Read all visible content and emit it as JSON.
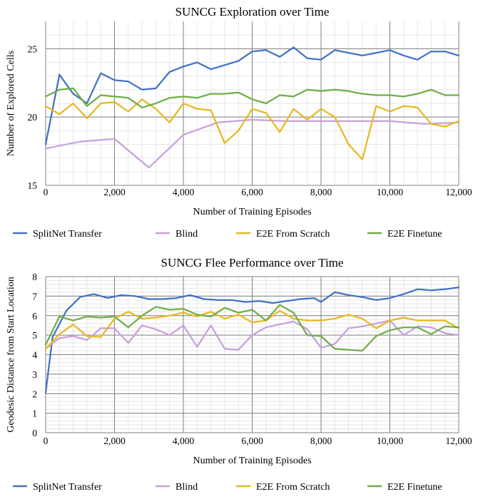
{
  "chart_data": [
    {
      "type": "line",
      "title": "SUNCG Exploration over Time",
      "xlabel": "Number of Training Episodes",
      "ylabel": "Number of Explored Cells",
      "xlim": [
        0,
        12000
      ],
      "ylim": [
        15,
        27
      ],
      "xticks": [
        0,
        2000,
        4000,
        6000,
        8000,
        10000,
        12000
      ],
      "xtick_labels": [
        "0",
        "2,000",
        "4,000",
        "6,000",
        "8,000",
        "10,000",
        "12,000"
      ],
      "yticks": [
        15,
        20,
        25
      ],
      "ytick_labels": [
        "15",
        "20",
        "25"
      ],
      "grid": true,
      "legend_position": "bottom",
      "series": [
        {
          "name": "SplitNet Transfer",
          "color": "#4472C4",
          "x": [
            0,
            400,
            800,
            1200,
            1600,
            2000,
            2400,
            2800,
            3200,
            3600,
            4000,
            4400,
            4800,
            5200,
            5600,
            6000,
            6400,
            6800,
            7200,
            7600,
            8000,
            8400,
            8800,
            9200,
            9600,
            10000,
            10400,
            10800,
            11200,
            11600,
            12000
          ],
          "y": [
            18.0,
            23.1,
            21.7,
            21.0,
            23.2,
            22.7,
            22.6,
            22.0,
            22.1,
            23.3,
            23.7,
            24.0,
            23.5,
            23.8,
            24.1,
            24.8,
            24.9,
            24.4,
            25.1,
            24.3,
            24.2,
            24.9,
            24.7,
            24.5,
            24.7,
            24.9,
            24.5,
            24.2,
            24.8,
            24.8,
            24.5
          ]
        },
        {
          "name": "Blind",
          "color": "#C8A0DC",
          "x": [
            0,
            1000,
            2000,
            3000,
            4000,
            5000,
            6000,
            7000,
            8000,
            9000,
            10000,
            11000,
            12000
          ],
          "y": [
            17.7,
            18.2,
            18.4,
            16.3,
            18.7,
            19.6,
            19.8,
            19.7,
            19.7,
            19.7,
            19.7,
            19.5,
            19.6
          ]
        },
        {
          "name": "E2E From Scratch",
          "color": "#E6B920",
          "x": [
            0,
            400,
            800,
            1200,
            1600,
            2000,
            2400,
            2800,
            3200,
            3600,
            4000,
            4400,
            4800,
            5200,
            5600,
            6000,
            6400,
            6800,
            7200,
            7600,
            8000,
            8400,
            8800,
            9200,
            9600,
            10000,
            10400,
            10800,
            11200,
            11600,
            12000
          ],
          "y": [
            20.8,
            20.2,
            21.0,
            19.9,
            21.0,
            21.1,
            20.4,
            21.3,
            20.6,
            19.6,
            21.0,
            20.6,
            20.5,
            18.1,
            19.0,
            20.6,
            20.3,
            18.9,
            20.6,
            19.8,
            20.6,
            20.0,
            18.0,
            16.9,
            20.8,
            20.4,
            20.8,
            20.7,
            19.5,
            19.3,
            19.7
          ]
        },
        {
          "name": "E2E Finetune",
          "color": "#70AD47",
          "x": [
            0,
            400,
            800,
            1200,
            1600,
            2000,
            2400,
            2800,
            3200,
            3600,
            4000,
            4400,
            4800,
            5200,
            5600,
            6000,
            6400,
            6800,
            7200,
            7600,
            8000,
            8400,
            8800,
            9200,
            9600,
            10000,
            10400,
            10800,
            11200,
            11600,
            12000
          ],
          "y": [
            21.5,
            22.0,
            22.1,
            20.8,
            21.6,
            21.5,
            21.4,
            20.7,
            21.0,
            21.4,
            21.5,
            21.4,
            21.7,
            21.7,
            21.8,
            21.3,
            21.0,
            21.6,
            21.5,
            22.0,
            21.9,
            22.0,
            21.9,
            21.7,
            21.6,
            21.6,
            21.5,
            21.7,
            22.0,
            21.6,
            21.6
          ]
        }
      ]
    },
    {
      "type": "line",
      "title": "SUNCG Flee Performance over Time",
      "xlabel": "Number of Training Episodes",
      "ylabel": "Geodesic Distance from Start Location",
      "xlim": [
        0,
        12000
      ],
      "ylim": [
        0,
        8
      ],
      "xticks": [
        0,
        2000,
        4000,
        6000,
        8000,
        10000,
        12000
      ],
      "xtick_labels": [
        "0",
        "2,000",
        "4,000",
        "6,000",
        "8,000",
        "10,000",
        "12,000"
      ],
      "yticks": [
        0,
        1,
        2,
        3,
        4,
        5,
        6,
        7,
        8
      ],
      "ytick_labels": [
        "0",
        "1",
        "2",
        "3",
        "4",
        "5",
        "6",
        "7",
        "8"
      ],
      "grid": true,
      "legend_position": "bottom",
      "series": [
        {
          "name": "SplitNet Transfer",
          "color": "#4472C4",
          "x": [
            0,
            200,
            600,
            1000,
            1400,
            1800,
            2200,
            2600,
            3000,
            3400,
            3800,
            4200,
            4600,
            5000,
            5400,
            5800,
            6200,
            6600,
            7000,
            7400,
            7800,
            8000,
            8400,
            8800,
            9200,
            9600,
            10000,
            10400,
            10800,
            11200,
            11600,
            12000
          ],
          "y": [
            2.05,
            4.9,
            6.25,
            6.95,
            7.1,
            6.9,
            7.05,
            7.0,
            6.85,
            6.85,
            6.9,
            7.05,
            6.85,
            6.8,
            6.8,
            6.7,
            6.75,
            6.65,
            6.75,
            6.85,
            6.9,
            6.7,
            7.2,
            7.05,
            6.95,
            6.8,
            6.9,
            7.1,
            7.35,
            7.3,
            7.35,
            7.45
          ]
        },
        {
          "name": "Blind",
          "color": "#C8A0DC",
          "x": [
            0,
            400,
            800,
            1200,
            1600,
            2000,
            2400,
            2800,
            3200,
            3600,
            4000,
            4400,
            4800,
            5200,
            5600,
            6000,
            6400,
            6800,
            7200,
            7600,
            8000,
            8400,
            8800,
            9200,
            9600,
            10000,
            10400,
            10800,
            11200,
            11600,
            12000
          ],
          "y": [
            4.3,
            4.85,
            4.95,
            4.75,
            5.35,
            5.35,
            4.6,
            5.5,
            5.3,
            5.0,
            5.5,
            4.4,
            5.5,
            4.3,
            4.25,
            5.0,
            5.4,
            5.55,
            5.7,
            5.3,
            4.35,
            4.55,
            5.35,
            5.45,
            5.6,
            5.75,
            5.0,
            5.45,
            5.4,
            5.1,
            5.0
          ]
        },
        {
          "name": "E2E From Scratch",
          "color": "#E6B920",
          "x": [
            0,
            400,
            800,
            1200,
            1600,
            2000,
            2400,
            2800,
            3200,
            3600,
            4000,
            4400,
            4800,
            5200,
            5600,
            6000,
            6400,
            6800,
            7200,
            7600,
            8000,
            8400,
            8800,
            9200,
            9600,
            10000,
            10400,
            10800,
            11200,
            11600,
            12000
          ],
          "y": [
            4.3,
            5.05,
            5.55,
            4.95,
            4.9,
            5.85,
            6.2,
            5.85,
            5.9,
            6.0,
            6.15,
            5.95,
            6.2,
            5.85,
            6.05,
            5.65,
            5.75,
            6.25,
            5.85,
            5.75,
            5.75,
            5.85,
            6.05,
            5.85,
            5.35,
            5.75,
            5.9,
            5.75,
            5.75,
            5.75,
            5.35
          ]
        },
        {
          "name": "E2E Finetune",
          "color": "#70AD47",
          "x": [
            0,
            400,
            800,
            1200,
            1600,
            2000,
            2400,
            2800,
            3200,
            3600,
            4000,
            4400,
            4800,
            5200,
            5600,
            6000,
            6400,
            6800,
            7200,
            7600,
            8000,
            8400,
            8800,
            9200,
            9600,
            10000,
            10400,
            10800,
            11200,
            11600,
            12000
          ],
          "y": [
            4.5,
            5.95,
            5.75,
            5.95,
            5.9,
            5.95,
            5.4,
            6.0,
            6.45,
            6.3,
            6.35,
            6.05,
            5.95,
            6.4,
            6.15,
            6.3,
            5.75,
            6.55,
            6.15,
            5.0,
            4.95,
            4.3,
            4.25,
            4.2,
            4.95,
            5.25,
            5.4,
            5.4,
            5.05,
            5.45,
            5.4
          ]
        }
      ]
    }
  ]
}
